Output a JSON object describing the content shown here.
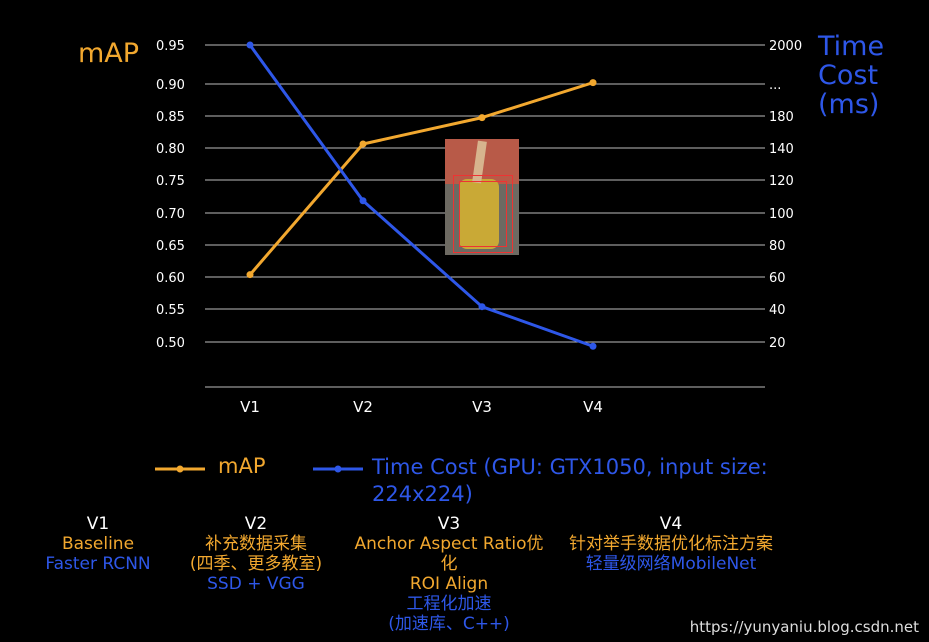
{
  "chart_data": {
    "type": "line",
    "categories": [
      "V1",
      "V2",
      "V3",
      "V4"
    ],
    "series": [
      {
        "name": "mAP",
        "axis": "left",
        "color": "#F2A82F",
        "values": [
          0.602,
          0.8,
          0.84,
          0.893
        ]
      },
      {
        "name": "Time Cost (GPU: GTX1050, input size: 224x224)",
        "axis": "right",
        "color": "#2E57E8",
        "values": [
          2000,
          120,
          45,
          17
        ]
      }
    ],
    "left_axis": {
      "title": "mAP",
      "ticks": [
        "0.95",
        "0.90",
        "0.85",
        "0.80",
        "0.75",
        "0.70",
        "0.65",
        "0.60",
        "0.55",
        "0.50"
      ]
    },
    "right_axis": {
      "title_lines": [
        "Time",
        "Cost",
        "(ms)"
      ],
      "ticks": [
        "2000",
        "...",
        "180",
        "140",
        "120",
        "100",
        "80",
        "60",
        "40",
        "20"
      ]
    },
    "grid": true,
    "legend_position": "bottom"
  },
  "legend": {
    "map_label": "mAP",
    "time_label_line1": "Time Cost (GPU: GTX1050, input size:",
    "time_label_line2": "224x224)"
  },
  "versions": [
    {
      "title": "V1",
      "lines": [
        {
          "text": "Baseline",
          "color": "orange"
        },
        {
          "text": "Faster RCNN",
          "color": "blue"
        }
      ]
    },
    {
      "title": "V2",
      "lines": [
        {
          "text": "补充数据采集",
          "color": "orange"
        },
        {
          "text": "(四季、更多教室)",
          "color": "orange"
        },
        {
          "text": "SSD + VGG",
          "color": "blue"
        }
      ]
    },
    {
      "title": "V3",
      "lines": [
        {
          "text": "Anchor Aspect Ratio优",
          "color": "orange"
        },
        {
          "text": "化",
          "color": "orange"
        },
        {
          "text": "ROI Align",
          "color": "orange"
        },
        {
          "text": "工程化加速",
          "color": "blue"
        },
        {
          "text": "(加速库、C++)",
          "color": "blue"
        }
      ]
    },
    {
      "title": "V4",
      "lines": [
        {
          "text": "针对举手数据优化标注方案",
          "color": "orange"
        },
        {
          "text": "轻量级网络MobileNet",
          "color": "blue"
        }
      ]
    }
  ],
  "watermark": "https://yunyaniu.blog.csdn.net"
}
